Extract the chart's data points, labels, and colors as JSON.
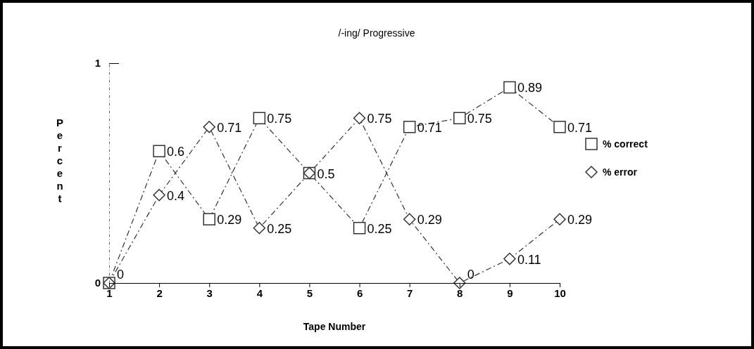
{
  "chart_data": {
    "type": "line",
    "title": "/-ing/ Progressive",
    "xlabel": "Tape Number",
    "ylabel": "Percent",
    "categories": [
      "1",
      "2",
      "3",
      "4",
      "5",
      "6",
      "7",
      "8",
      "9",
      "10"
    ],
    "ylim": [
      0,
      1
    ],
    "yticks": [
      0,
      1
    ],
    "legend": "right",
    "line_style": "dashed",
    "series": [
      {
        "name": "% correct",
        "color": "#333333",
        "marker": "square",
        "values": [
          0,
          0.6,
          0.29,
          0.75,
          0.5,
          0.25,
          0.71,
          0.75,
          0.89,
          0.71
        ],
        "value_labels": [
          null,
          "0.6",
          "0.29",
          "0.75",
          null,
          "0.25",
          "0.71",
          "0.75",
          "0.89",
          "0.71"
        ]
      },
      {
        "name": "% error",
        "color": "#333333",
        "marker": "diamond",
        "values": [
          0,
          0.4,
          0.71,
          0.25,
          0.5,
          0.75,
          0.29,
          0,
          0.11,
          0.29
        ],
        "value_labels": [
          "0",
          "0.4",
          "0.71",
          "0.25",
          "0.5",
          "0.75",
          "0.29",
          "0",
          "0.11",
          "0.29"
        ]
      }
    ]
  }
}
